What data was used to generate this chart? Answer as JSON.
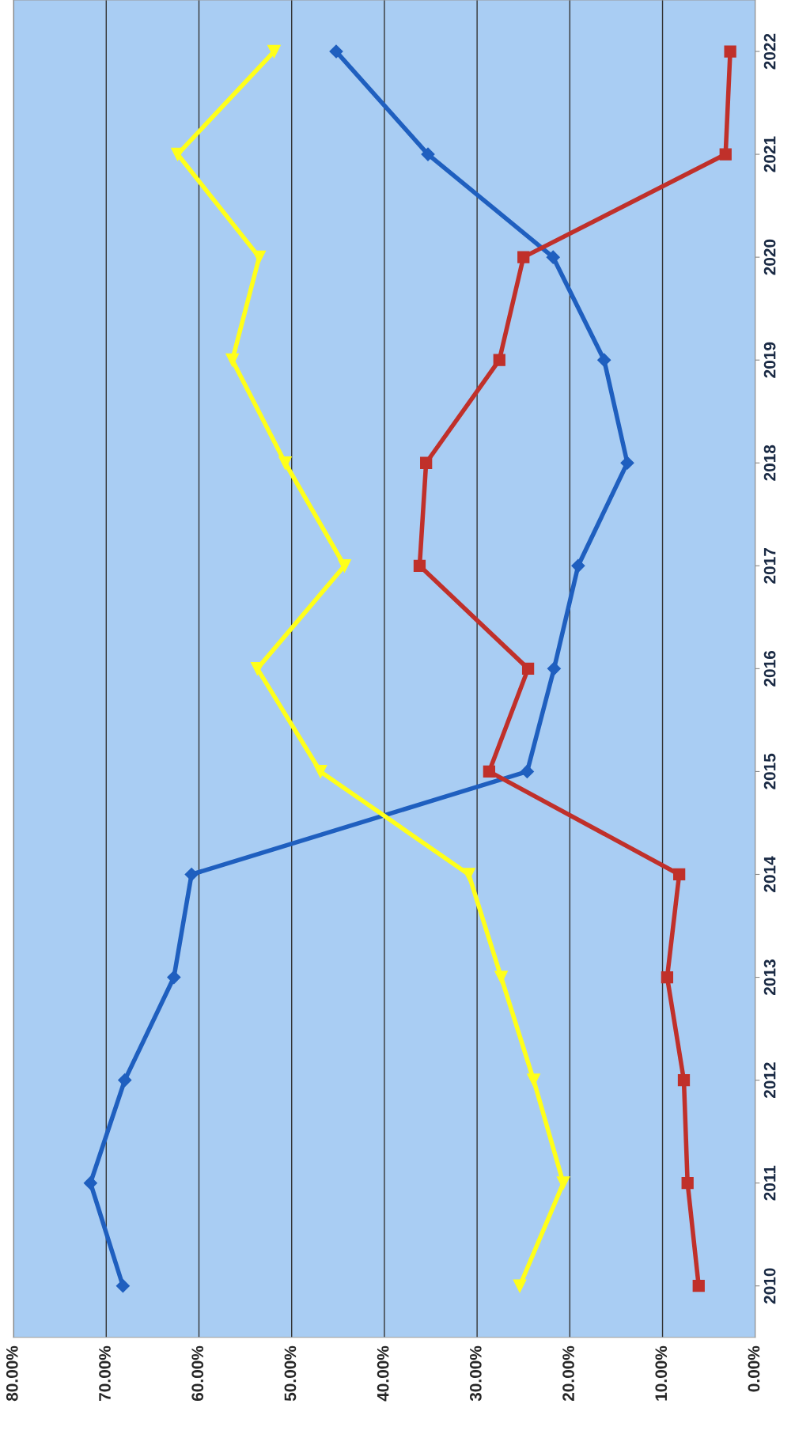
{
  "chart_data": {
    "type": "line",
    "orientation": "horizontal",
    "categories": [
      "2022",
      "2021",
      "2020",
      "2019",
      "2018",
      "2017",
      "2016",
      "2015",
      "2014",
      "2013",
      "2012",
      "2011",
      "2010"
    ],
    "series": [
      {
        "color": "#1f5fbf",
        "marker": "diamond",
        "values": [
          45.2,
          35.3,
          21.8,
          16.3,
          13.8,
          19.1,
          21.7,
          24.6,
          60.8,
          62.7,
          68.0,
          71.7,
          68.2
        ]
      },
      {
        "color": "#c0302a",
        "marker": "square",
        "values": [
          2.7,
          3.2,
          25.0,
          27.6,
          35.5,
          36.2,
          24.5,
          28.7,
          8.2,
          9.5,
          7.7,
          7.3,
          6.1
        ]
      },
      {
        "color": "#ffff1a",
        "marker": "triangle",
        "values": [
          51.9,
          62.3,
          53.5,
          56.4,
          50.7,
          44.3,
          53.7,
          46.9,
          30.9,
          27.4,
          23.9,
          20.7,
          25.4
        ]
      }
    ],
    "xlim": [
      80,
      0
    ],
    "xticks": [
      {
        "value": 80,
        "label": "80.00%"
      },
      {
        "value": 70,
        "label": "70.00%"
      },
      {
        "value": 60,
        "label": "60.00%"
      },
      {
        "value": 50,
        "label": "50.00%"
      },
      {
        "value": 40,
        "label": "40.00%"
      },
      {
        "value": 30,
        "label": "30.00%"
      },
      {
        "value": 20,
        "label": "20.00%"
      },
      {
        "value": 10,
        "label": "10.00%"
      },
      {
        "value": 0,
        "label": "0.00%"
      }
    ],
    "grid": "x"
  }
}
